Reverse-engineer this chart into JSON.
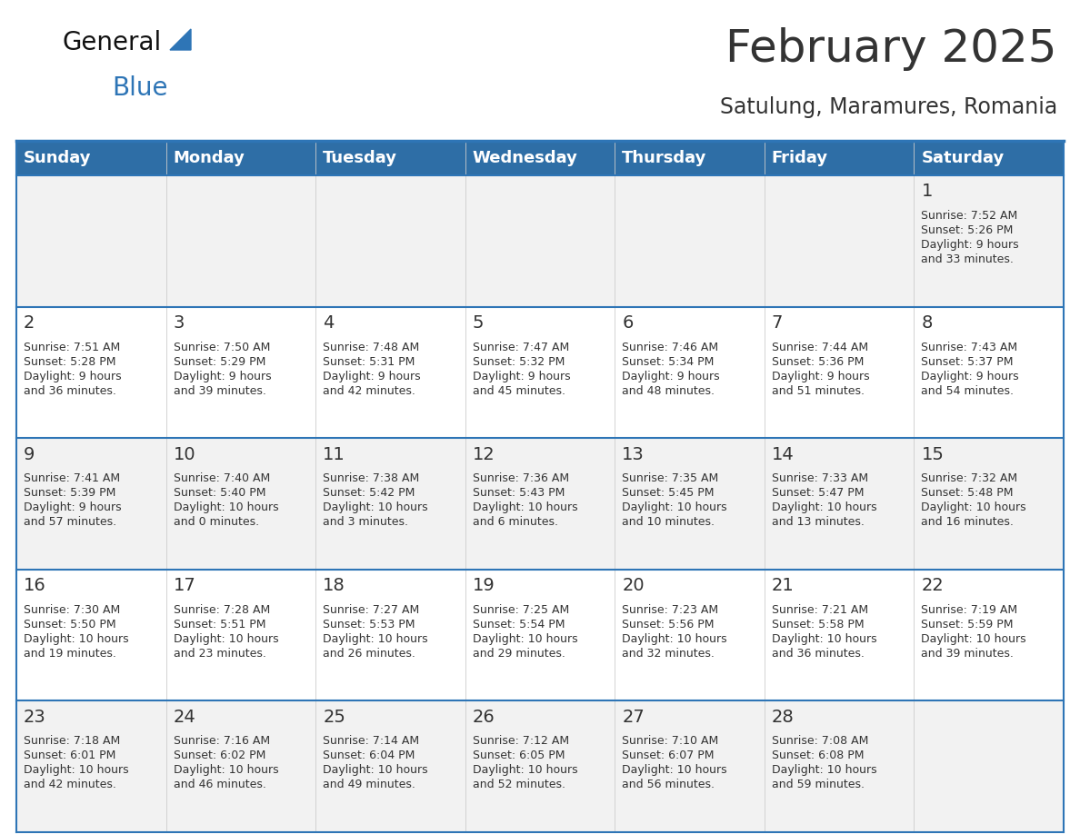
{
  "title": "February 2025",
  "subtitle": "Satulung, Maramures, Romania",
  "header_bg_color": "#2E6EA6",
  "header_text_color": "#FFFFFF",
  "cell_bg_color_odd": "#F2F2F2",
  "cell_bg_color_even": "#FFFFFF",
  "divider_color": "#2E75B6",
  "text_color": "#333333",
  "day_names": [
    "Sunday",
    "Monday",
    "Tuesday",
    "Wednesday",
    "Thursday",
    "Friday",
    "Saturday"
  ],
  "weeks": [
    [
      {
        "day": "",
        "sunrise": "",
        "sunset": "",
        "daylight": ""
      },
      {
        "day": "",
        "sunrise": "",
        "sunset": "",
        "daylight": ""
      },
      {
        "day": "",
        "sunrise": "",
        "sunset": "",
        "daylight": ""
      },
      {
        "day": "",
        "sunrise": "",
        "sunset": "",
        "daylight": ""
      },
      {
        "day": "",
        "sunrise": "",
        "sunset": "",
        "daylight": ""
      },
      {
        "day": "",
        "sunrise": "",
        "sunset": "",
        "daylight": ""
      },
      {
        "day": "1",
        "sunrise": "Sunrise: 7:52 AM",
        "sunset": "Sunset: 5:26 PM",
        "daylight": "Daylight: 9 hours\nand 33 minutes."
      }
    ],
    [
      {
        "day": "2",
        "sunrise": "Sunrise: 7:51 AM",
        "sunset": "Sunset: 5:28 PM",
        "daylight": "Daylight: 9 hours\nand 36 minutes."
      },
      {
        "day": "3",
        "sunrise": "Sunrise: 7:50 AM",
        "sunset": "Sunset: 5:29 PM",
        "daylight": "Daylight: 9 hours\nand 39 minutes."
      },
      {
        "day": "4",
        "sunrise": "Sunrise: 7:48 AM",
        "sunset": "Sunset: 5:31 PM",
        "daylight": "Daylight: 9 hours\nand 42 minutes."
      },
      {
        "day": "5",
        "sunrise": "Sunrise: 7:47 AM",
        "sunset": "Sunset: 5:32 PM",
        "daylight": "Daylight: 9 hours\nand 45 minutes."
      },
      {
        "day": "6",
        "sunrise": "Sunrise: 7:46 AM",
        "sunset": "Sunset: 5:34 PM",
        "daylight": "Daylight: 9 hours\nand 48 minutes."
      },
      {
        "day": "7",
        "sunrise": "Sunrise: 7:44 AM",
        "sunset": "Sunset: 5:36 PM",
        "daylight": "Daylight: 9 hours\nand 51 minutes."
      },
      {
        "day": "8",
        "sunrise": "Sunrise: 7:43 AM",
        "sunset": "Sunset: 5:37 PM",
        "daylight": "Daylight: 9 hours\nand 54 minutes."
      }
    ],
    [
      {
        "day": "9",
        "sunrise": "Sunrise: 7:41 AM",
        "sunset": "Sunset: 5:39 PM",
        "daylight": "Daylight: 9 hours\nand 57 minutes."
      },
      {
        "day": "10",
        "sunrise": "Sunrise: 7:40 AM",
        "sunset": "Sunset: 5:40 PM",
        "daylight": "Daylight: 10 hours\nand 0 minutes."
      },
      {
        "day": "11",
        "sunrise": "Sunrise: 7:38 AM",
        "sunset": "Sunset: 5:42 PM",
        "daylight": "Daylight: 10 hours\nand 3 minutes."
      },
      {
        "day": "12",
        "sunrise": "Sunrise: 7:36 AM",
        "sunset": "Sunset: 5:43 PM",
        "daylight": "Daylight: 10 hours\nand 6 minutes."
      },
      {
        "day": "13",
        "sunrise": "Sunrise: 7:35 AM",
        "sunset": "Sunset: 5:45 PM",
        "daylight": "Daylight: 10 hours\nand 10 minutes."
      },
      {
        "day": "14",
        "sunrise": "Sunrise: 7:33 AM",
        "sunset": "Sunset: 5:47 PM",
        "daylight": "Daylight: 10 hours\nand 13 minutes."
      },
      {
        "day": "15",
        "sunrise": "Sunrise: 7:32 AM",
        "sunset": "Sunset: 5:48 PM",
        "daylight": "Daylight: 10 hours\nand 16 minutes."
      }
    ],
    [
      {
        "day": "16",
        "sunrise": "Sunrise: 7:30 AM",
        "sunset": "Sunset: 5:50 PM",
        "daylight": "Daylight: 10 hours\nand 19 minutes."
      },
      {
        "day": "17",
        "sunrise": "Sunrise: 7:28 AM",
        "sunset": "Sunset: 5:51 PM",
        "daylight": "Daylight: 10 hours\nand 23 minutes."
      },
      {
        "day": "18",
        "sunrise": "Sunrise: 7:27 AM",
        "sunset": "Sunset: 5:53 PM",
        "daylight": "Daylight: 10 hours\nand 26 minutes."
      },
      {
        "day": "19",
        "sunrise": "Sunrise: 7:25 AM",
        "sunset": "Sunset: 5:54 PM",
        "daylight": "Daylight: 10 hours\nand 29 minutes."
      },
      {
        "day": "20",
        "sunrise": "Sunrise: 7:23 AM",
        "sunset": "Sunset: 5:56 PM",
        "daylight": "Daylight: 10 hours\nand 32 minutes."
      },
      {
        "day": "21",
        "sunrise": "Sunrise: 7:21 AM",
        "sunset": "Sunset: 5:58 PM",
        "daylight": "Daylight: 10 hours\nand 36 minutes."
      },
      {
        "day": "22",
        "sunrise": "Sunrise: 7:19 AM",
        "sunset": "Sunset: 5:59 PM",
        "daylight": "Daylight: 10 hours\nand 39 minutes."
      }
    ],
    [
      {
        "day": "23",
        "sunrise": "Sunrise: 7:18 AM",
        "sunset": "Sunset: 6:01 PM",
        "daylight": "Daylight: 10 hours\nand 42 minutes."
      },
      {
        "day": "24",
        "sunrise": "Sunrise: 7:16 AM",
        "sunset": "Sunset: 6:02 PM",
        "daylight": "Daylight: 10 hours\nand 46 minutes."
      },
      {
        "day": "25",
        "sunrise": "Sunrise: 7:14 AM",
        "sunset": "Sunset: 6:04 PM",
        "daylight": "Daylight: 10 hours\nand 49 minutes."
      },
      {
        "day": "26",
        "sunrise": "Sunrise: 7:12 AM",
        "sunset": "Sunset: 6:05 PM",
        "daylight": "Daylight: 10 hours\nand 52 minutes."
      },
      {
        "day": "27",
        "sunrise": "Sunrise: 7:10 AM",
        "sunset": "Sunset: 6:07 PM",
        "daylight": "Daylight: 10 hours\nand 56 minutes."
      },
      {
        "day": "28",
        "sunrise": "Sunrise: 7:08 AM",
        "sunset": "Sunset: 6:08 PM",
        "daylight": "Daylight: 10 hours\nand 59 minutes."
      },
      {
        "day": "",
        "sunrise": "",
        "sunset": "",
        "daylight": ""
      }
    ]
  ],
  "logo_text_general": "General",
  "logo_text_blue": "Blue",
  "logo_color_general": "#111111",
  "logo_color_blue": "#2E75B6",
  "logo_triangle_color": "#2E75B6",
  "title_fontsize": 36,
  "subtitle_fontsize": 17,
  "header_fontsize": 13,
  "day_num_fontsize": 14,
  "cell_text_fontsize": 9
}
